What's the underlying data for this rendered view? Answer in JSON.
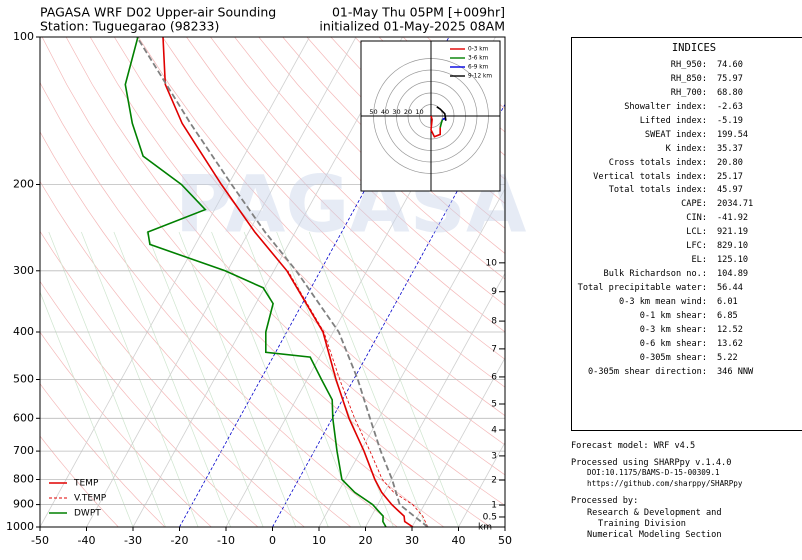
{
  "chart_data": {
    "type": "skewt",
    "title_left": [
      "PAGASA WRF D02 Upper-air Sounding",
      "Station: Tuguegarao (98233)"
    ],
    "title_right": [
      "01-May Thu 05PM [+009hr]",
      "initialized 01-May-2025 08AM"
    ],
    "watermark": "PAGASA",
    "xlim": [
      -50,
      50
    ],
    "xticks": [
      -50,
      -40,
      -30,
      -20,
      -10,
      0,
      10,
      20,
      30,
      40,
      50
    ],
    "ylim": [
      1000,
      100
    ],
    "yticks": [
      100,
      200,
      300,
      400,
      500,
      600,
      700,
      800,
      900,
      1000
    ],
    "log_scale": true,
    "grid": true,
    "height_ticks": [
      {
        "value": 289,
        "label": "10"
      },
      {
        "value": 331,
        "label": "9"
      },
      {
        "value": 380,
        "label": "8"
      },
      {
        "value": 433,
        "label": "7"
      },
      {
        "value": 494,
        "label": "6"
      },
      {
        "value": 561,
        "label": "5"
      },
      {
        "value": 634,
        "label": "4"
      },
      {
        "value": 716,
        "label": "3"
      },
      {
        "value": 802,
        "label": "2"
      },
      {
        "value": 902,
        "label": "1"
      },
      {
        "value": 954,
        "label": "0.5"
      }
    ],
    "height_unit": "km",
    "legend": "lower left",
    "series": [
      {
        "name": "TEMP",
        "color": "#e00000",
        "pressure": [
          1000,
          975,
          950,
          925,
          900,
          850,
          800,
          700,
          600,
          500,
          400,
          300,
          250,
          200,
          150,
          125,
          100
        ],
        "values": [
          30.2,
          27.8,
          27.0,
          25.0,
          23.0,
          19.4,
          16.4,
          10.7,
          3.6,
          -3.8,
          -12.2,
          -27.2,
          -38.7,
          -51.5,
          -67.2,
          -75.4,
          -81.5
        ]
      },
      {
        "name": "V.TEMP",
        "color": "#e00000",
        "dashed": true,
        "pressure": [
          1000,
          950,
          900,
          850,
          800,
          700,
          600,
          500,
          400,
          300
        ],
        "values": [
          33.4,
          31.0,
          27.5,
          22.0,
          18.0,
          12.0,
          4.8,
          -3.0,
          -12.0,
          -27.0
        ]
      },
      {
        "name": "DWPT",
        "color": "#008000",
        "pressure": [
          1000,
          975,
          950,
          925,
          900,
          850,
          800,
          700,
          600,
          550,
          500,
          450,
          440,
          400,
          350,
          325,
          300,
          265,
          250,
          225,
          200,
          175,
          150,
          125,
          100
        ],
        "values": [
          24.4,
          23.1,
          22.5,
          20.7,
          18.9,
          13.6,
          9.3,
          4.9,
          0.1,
          -2.2,
          -6.9,
          -12.0,
          -22.1,
          -24.5,
          -26.3,
          -30.3,
          -40.5,
          -59.8,
          -61.7,
          -52.0,
          -60.1,
          -71.7,
          -77.9,
          -84.0,
          -86.9
        ]
      },
      {
        "color": "#808080",
        "dashed": true,
        "pressure": [
          1000,
          900,
          800,
          700,
          600,
          500,
          400,
          300,
          250,
          200,
          150,
          100
        ],
        "values": [
          33.4,
          24.7,
          20.1,
          14.3,
          8.1,
          0.9,
          -8.8,
          -25.2,
          -36.5,
          -49.3,
          -65.4,
          -87.1
        ]
      }
    ],
    "hodograph": {
      "rings": [
        10,
        20,
        30,
        40,
        50
      ],
      "series": [
        {
          "name": "0-3 km",
          "color": "#e00000",
          "u": [
            0,
            1,
            0,
            3,
            8,
            8
          ],
          "v": [
            0,
            -3,
            -12,
            -18,
            -16,
            -10
          ]
        },
        {
          "name": "3-6 km",
          "color": "#008000",
          "u": [
            8,
            9,
            10
          ],
          "v": [
            -10,
            -6,
            -3
          ]
        },
        {
          "name": "6-9 km",
          "color": "#0000e0",
          "u": [
            10,
            12,
            13
          ],
          "v": [
            -3,
            -2,
            -4
          ]
        },
        {
          "name": "9-12 km",
          "color": "#000000",
          "u": [
            13,
            12,
            8,
            5
          ],
          "v": [
            -4,
            2,
            6,
            8
          ]
        }
      ]
    },
    "indices": {
      "title": "INDICES",
      "rows": [
        [
          "RH_950:",
          "74.60"
        ],
        [
          "RH_850:",
          "75.97"
        ],
        [
          "RH_700:",
          "68.80"
        ],
        [
          "Showalter index:",
          "-2.63"
        ],
        [
          "Lifted index:",
          "-5.19"
        ],
        [
          "SWEAT index:",
          "199.54"
        ],
        [
          "K index:",
          "35.37"
        ],
        [
          "Cross totals index:",
          "20.80"
        ],
        [
          "Vertical totals index:",
          "25.17"
        ],
        [
          "Total totals index:",
          "45.97"
        ],
        [
          "CAPE:",
          "2034.71"
        ],
        [
          "CIN:",
          "-41.92"
        ],
        [
          "LCL:",
          "921.19"
        ],
        [
          "LFC:",
          "829.10"
        ],
        [
          "EL:",
          "125.10"
        ],
        [
          "Bulk Richardson no.:",
          "104.89"
        ],
        [
          "Total precipitable water:",
          "56.44"
        ],
        [
          "0-3 km mean wind:",
          "6.01"
        ],
        [
          "0-1 km shear:",
          "6.85"
        ],
        [
          "0-3 km shear:",
          "12.52"
        ],
        [
          "0-6 km shear:",
          "13.62"
        ],
        [
          "0-305m shear:",
          "5.22"
        ],
        [
          "0-305m shear direction:",
          "346 NNW"
        ]
      ]
    },
    "footer": [
      "Forecast model: WRF v4.5",
      "Processed using SHARPpy v.1.4.0",
      "DOI:10.1175/BAMS-D-15-00309.1",
      "https://github.com/sharppy/SHARPpy",
      "Processed by:",
      "Research & Development and",
      "Training Division",
      "Numerical Modeling Section"
    ]
  }
}
